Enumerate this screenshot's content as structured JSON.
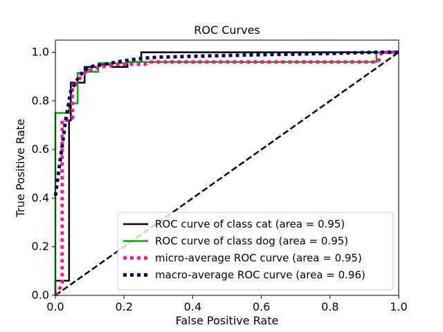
{
  "chart_data": {
    "type": "line",
    "title": "ROC Curves",
    "xlabel": "False Positive Rate",
    "ylabel": "True Positive Rate",
    "xlim": [
      0.0,
      1.0
    ],
    "ylim": [
      0.0,
      1.05
    ],
    "xticks": [
      "0.0",
      "0.2",
      "0.4",
      "0.6",
      "0.8",
      "1.0"
    ],
    "yticks": [
      "0.0",
      "0.2",
      "0.4",
      "0.6",
      "0.8",
      "1.0"
    ],
    "grid": false,
    "legend_position": "lower-right",
    "series": [
      {
        "name": "ROC curve of class cat (area = 0.95)",
        "color": "#000000",
        "style": "solid",
        "points": [
          [
            0,
            0
          ],
          [
            0,
            0.06
          ],
          [
            0.04,
            0.06
          ],
          [
            0.04,
            0.72
          ],
          [
            0.045,
            0.72
          ],
          [
            0.045,
            0.875
          ],
          [
            0.085,
            0.875
          ],
          [
            0.085,
            0.94
          ],
          [
            0.125,
            0.94
          ],
          [
            0.125,
            0.95
          ],
          [
            0.165,
            0.95
          ],
          [
            0.165,
            0.94
          ],
          [
            0.21,
            0.94
          ],
          [
            0.21,
            0.96
          ],
          [
            0.25,
            0.96
          ],
          [
            0.25,
            1.0
          ],
          [
            1.0,
            1.0
          ]
        ]
      },
      {
        "name": "ROC curve of class dog (area = 0.95)",
        "color": "#00b000",
        "style": "solid",
        "points": [
          [
            0,
            0
          ],
          [
            0,
            0.75
          ],
          [
            0.04,
            0.75
          ],
          [
            0.04,
            0.79
          ],
          [
            0.065,
            0.79
          ],
          [
            0.065,
            0.915
          ],
          [
            0.085,
            0.915
          ],
          [
            0.085,
            0.92
          ],
          [
            0.125,
            0.92
          ],
          [
            0.125,
            0.955
          ],
          [
            0.21,
            0.955
          ],
          [
            0.21,
            0.96
          ],
          [
            0.935,
            0.96
          ],
          [
            0.935,
            1.0
          ],
          [
            1.0,
            1.0
          ]
        ]
      },
      {
        "name": "micro-average ROC curve (area = 0.95)",
        "color": "#ff1493",
        "style": "dotted",
        "points": [
          [
            0,
            0
          ],
          [
            0.01,
            0.02
          ],
          [
            0.02,
            0.05
          ],
          [
            0.02,
            0.72
          ],
          [
            0.04,
            0.72
          ],
          [
            0.05,
            0.73
          ],
          [
            0.05,
            0.85
          ],
          [
            0.07,
            0.89
          ],
          [
            0.09,
            0.92
          ],
          [
            0.13,
            0.94
          ],
          [
            0.18,
            0.95
          ],
          [
            0.26,
            0.95
          ],
          [
            0.27,
            0.96
          ],
          [
            0.5,
            0.96
          ],
          [
            0.94,
            0.96
          ],
          [
            0.95,
            1.0
          ],
          [
            1.0,
            1.0
          ]
        ]
      },
      {
        "name": "macro-average ROC curve (area = 0.96)",
        "color": "#000060",
        "style": "dotted",
        "points": [
          [
            0,
            0.41
          ],
          [
            0.03,
            0.72
          ],
          [
            0.045,
            0.84
          ],
          [
            0.06,
            0.88
          ],
          [
            0.08,
            0.92
          ],
          [
            0.1,
            0.94
          ],
          [
            0.14,
            0.95
          ],
          [
            0.2,
            0.965
          ],
          [
            0.25,
            0.975
          ],
          [
            0.3,
            0.98
          ],
          [
            0.45,
            0.985
          ],
          [
            0.6,
            0.99
          ],
          [
            0.8,
            0.995
          ],
          [
            0.93,
            1.0
          ],
          [
            1.0,
            1.0
          ]
        ]
      },
      {
        "name": "",
        "color": "#000000",
        "style": "dashed",
        "points": [
          [
            0,
            0
          ],
          [
            1,
            1
          ]
        ]
      }
    ]
  }
}
